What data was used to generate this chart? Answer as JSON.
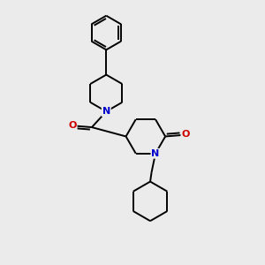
{
  "background_color": "#ebebeb",
  "bond_color": "#000000",
  "N_color": "#0000cc",
  "O_color": "#cc0000",
  "bond_width": 1.4,
  "figsize": [
    3.0,
    3.0
  ],
  "dpi": 100,
  "xlim": [
    0,
    10
  ],
  "ylim": [
    0,
    10
  ]
}
